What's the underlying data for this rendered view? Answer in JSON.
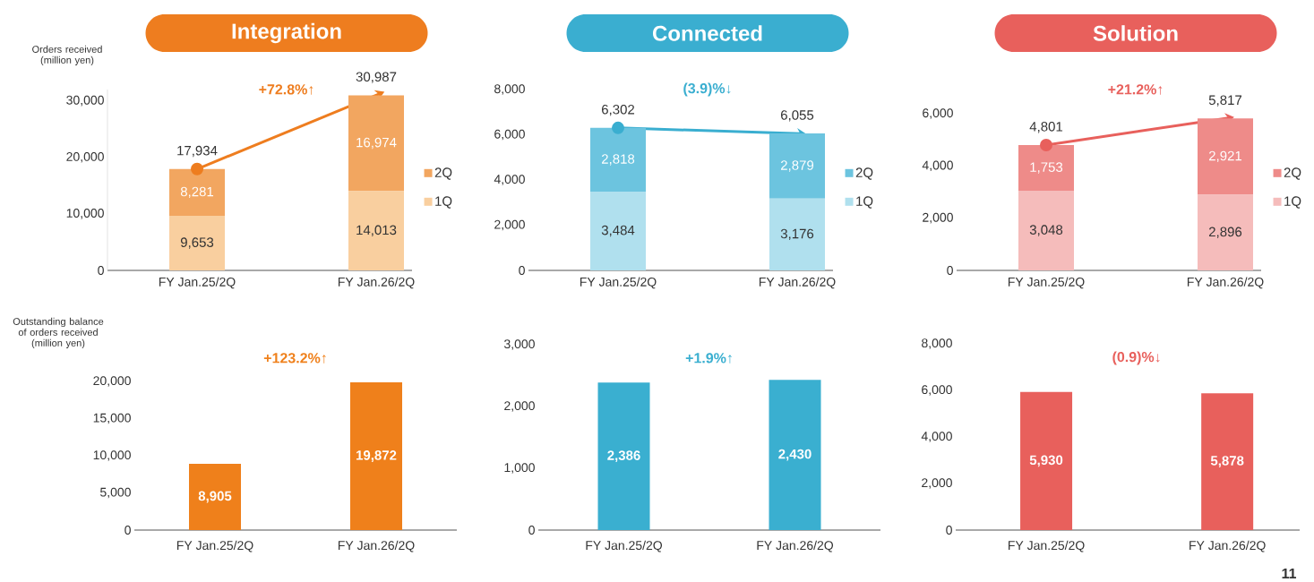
{
  "chart_data": [
    {
      "type": "bar",
      "stacked": true,
      "title": "Integration",
      "ylabel": "Orders received (million yen)",
      "categories": [
        "FY Jan.25/2Q",
        "FY Jan.26/2Q"
      ],
      "series": [
        {
          "name": "1Q",
          "color": "#f9cf9f",
          "values": [
            9653,
            14013
          ],
          "value_labels": [
            "9,653",
            "14,013"
          ]
        },
        {
          "name": "2Q",
          "color": "#f2a660",
          "values": [
            8281,
            16974
          ],
          "value_labels": [
            "8,281",
            "16,974"
          ]
        },
        {
          "type": "line",
          "color": "#ee7d1f",
          "values": [
            17934,
            30987
          ],
          "marker": "circle"
        }
      ],
      "totals": [
        "17,934",
        "30,987"
      ],
      "annotations": [
        "+72.8%↑"
      ],
      "legend": "right",
      "ylim": [
        0,
        32000
      ],
      "yticks": [
        0,
        {
          "value": 10000,
          "label": "10,000"
        },
        {
          "value": 20000,
          "label": "20,000"
        },
        {
          "value": 30000,
          "label": "30,000"
        }
      ]
    },
    {
      "type": "bar",
      "stacked": true,
      "title": "Connected",
      "categories": [
        "FY Jan.25/2Q",
        "FY Jan.26/2Q"
      ],
      "series": [
        {
          "name": "1Q",
          "color": "#b0e0ee",
          "values": [
            3484,
            3176
          ],
          "value_labels": [
            "3,484",
            "3,176"
          ]
        },
        {
          "name": "2Q",
          "color": "#6cc4df",
          "values": [
            2818,
            2879
          ],
          "value_labels": [
            "2,818",
            "2,879"
          ]
        },
        {
          "type": "line",
          "color": "#3aaed0",
          "values": [
            6302,
            6055
          ],
          "marker": "circle"
        }
      ],
      "totals": [
        "6,302",
        "6,055"
      ],
      "annotations": [
        "(3.9)%↓"
      ],
      "legend": "right",
      "ylim": [
        0,
        8000
      ],
      "yticks": [
        0,
        {
          "value": 2000,
          "label": "2,000"
        },
        {
          "value": 4000,
          "label": "4,000"
        },
        {
          "value": 6000,
          "label": "6,000"
        },
        {
          "value": 8000,
          "label": "8,000"
        }
      ]
    },
    {
      "type": "bar",
      "stacked": true,
      "title": "Solution",
      "categories": [
        "FY Jan.25/2Q",
        "FY Jan.26/2Q"
      ],
      "series": [
        {
          "name": "1Q",
          "color": "#f5bcbb",
          "values": [
            3048,
            2896
          ],
          "value_labels": [
            "3,048",
            "2,896"
          ]
        },
        {
          "name": "2Q",
          "color": "#ee8b89",
          "values": [
            1753,
            2921
          ],
          "value_labels": [
            "1,753",
            "2,921"
          ]
        },
        {
          "type": "line",
          "color": "#e8605c",
          "values": [
            4801,
            5817
          ],
          "marker": "circle"
        }
      ],
      "totals": [
        "4,801",
        "5,817"
      ],
      "annotations": [
        "+21.2%↑"
      ],
      "legend": "right",
      "ylim": [
        0,
        6000
      ],
      "yticks": [
        0,
        {
          "value": 2000,
          "label": "2,000"
        },
        {
          "value": 4000,
          "label": "4,000"
        },
        {
          "value": 6000,
          "label": "6,000"
        }
      ]
    },
    {
      "type": "bar",
      "ylabel": "Outstanding balance of orders received (million yen)",
      "categories": [
        "FY Jan.25/2Q",
        "FY Jan.26/2Q"
      ],
      "series": [
        {
          "color": "#ef801b",
          "values": [
            8905,
            19872
          ],
          "value_labels": [
            "8,905",
            "19,872"
          ]
        }
      ],
      "annotations": [
        "+123.2%↑"
      ],
      "ylim": [
        0,
        20000
      ],
      "yticks": [
        0,
        {
          "value": 5000,
          "label": "5,000"
        },
        {
          "value": 10000,
          "label": "10,000"
        },
        {
          "value": 15000,
          "label": "15,000"
        },
        {
          "value": 20000,
          "label": "20,000"
        }
      ]
    },
    {
      "type": "bar",
      "categories": [
        "FY Jan.25/2Q",
        "FY Jan.26/2Q"
      ],
      "series": [
        {
          "color": "#3aafd0",
          "values": [
            2386,
            2430
          ],
          "value_labels": [
            "2,386",
            "2,430"
          ]
        }
      ],
      "annotations": [
        "+1.9%↑"
      ],
      "ylim": [
        0,
        3000
      ],
      "yticks": [
        0,
        {
          "value": 1000,
          "label": "1,000"
        },
        {
          "value": 2000,
          "label": "2,000"
        },
        {
          "value": 3000,
          "label": "3,000"
        }
      ]
    },
    {
      "type": "bar",
      "categories": [
        "FY Jan.25/2Q",
        "FY Jan.26/2Q"
      ],
      "series": [
        {
          "color": "#e8605c",
          "values": [
            5930,
            5878
          ],
          "value_labels": [
            "5,930",
            "5,878"
          ]
        }
      ],
      "annotations": [
        "(0.9)%↓",
        "11"
      ],
      "ylim": [
        0,
        8000
      ],
      "yticks": [
        0,
        {
          "value": 2000,
          "label": "2,000"
        },
        {
          "value": 4000,
          "label": "4,000"
        },
        {
          "value": 6000,
          "label": "6,000"
        },
        {
          "value": 8000,
          "label": "8,000"
        }
      ]
    }
  ]
}
